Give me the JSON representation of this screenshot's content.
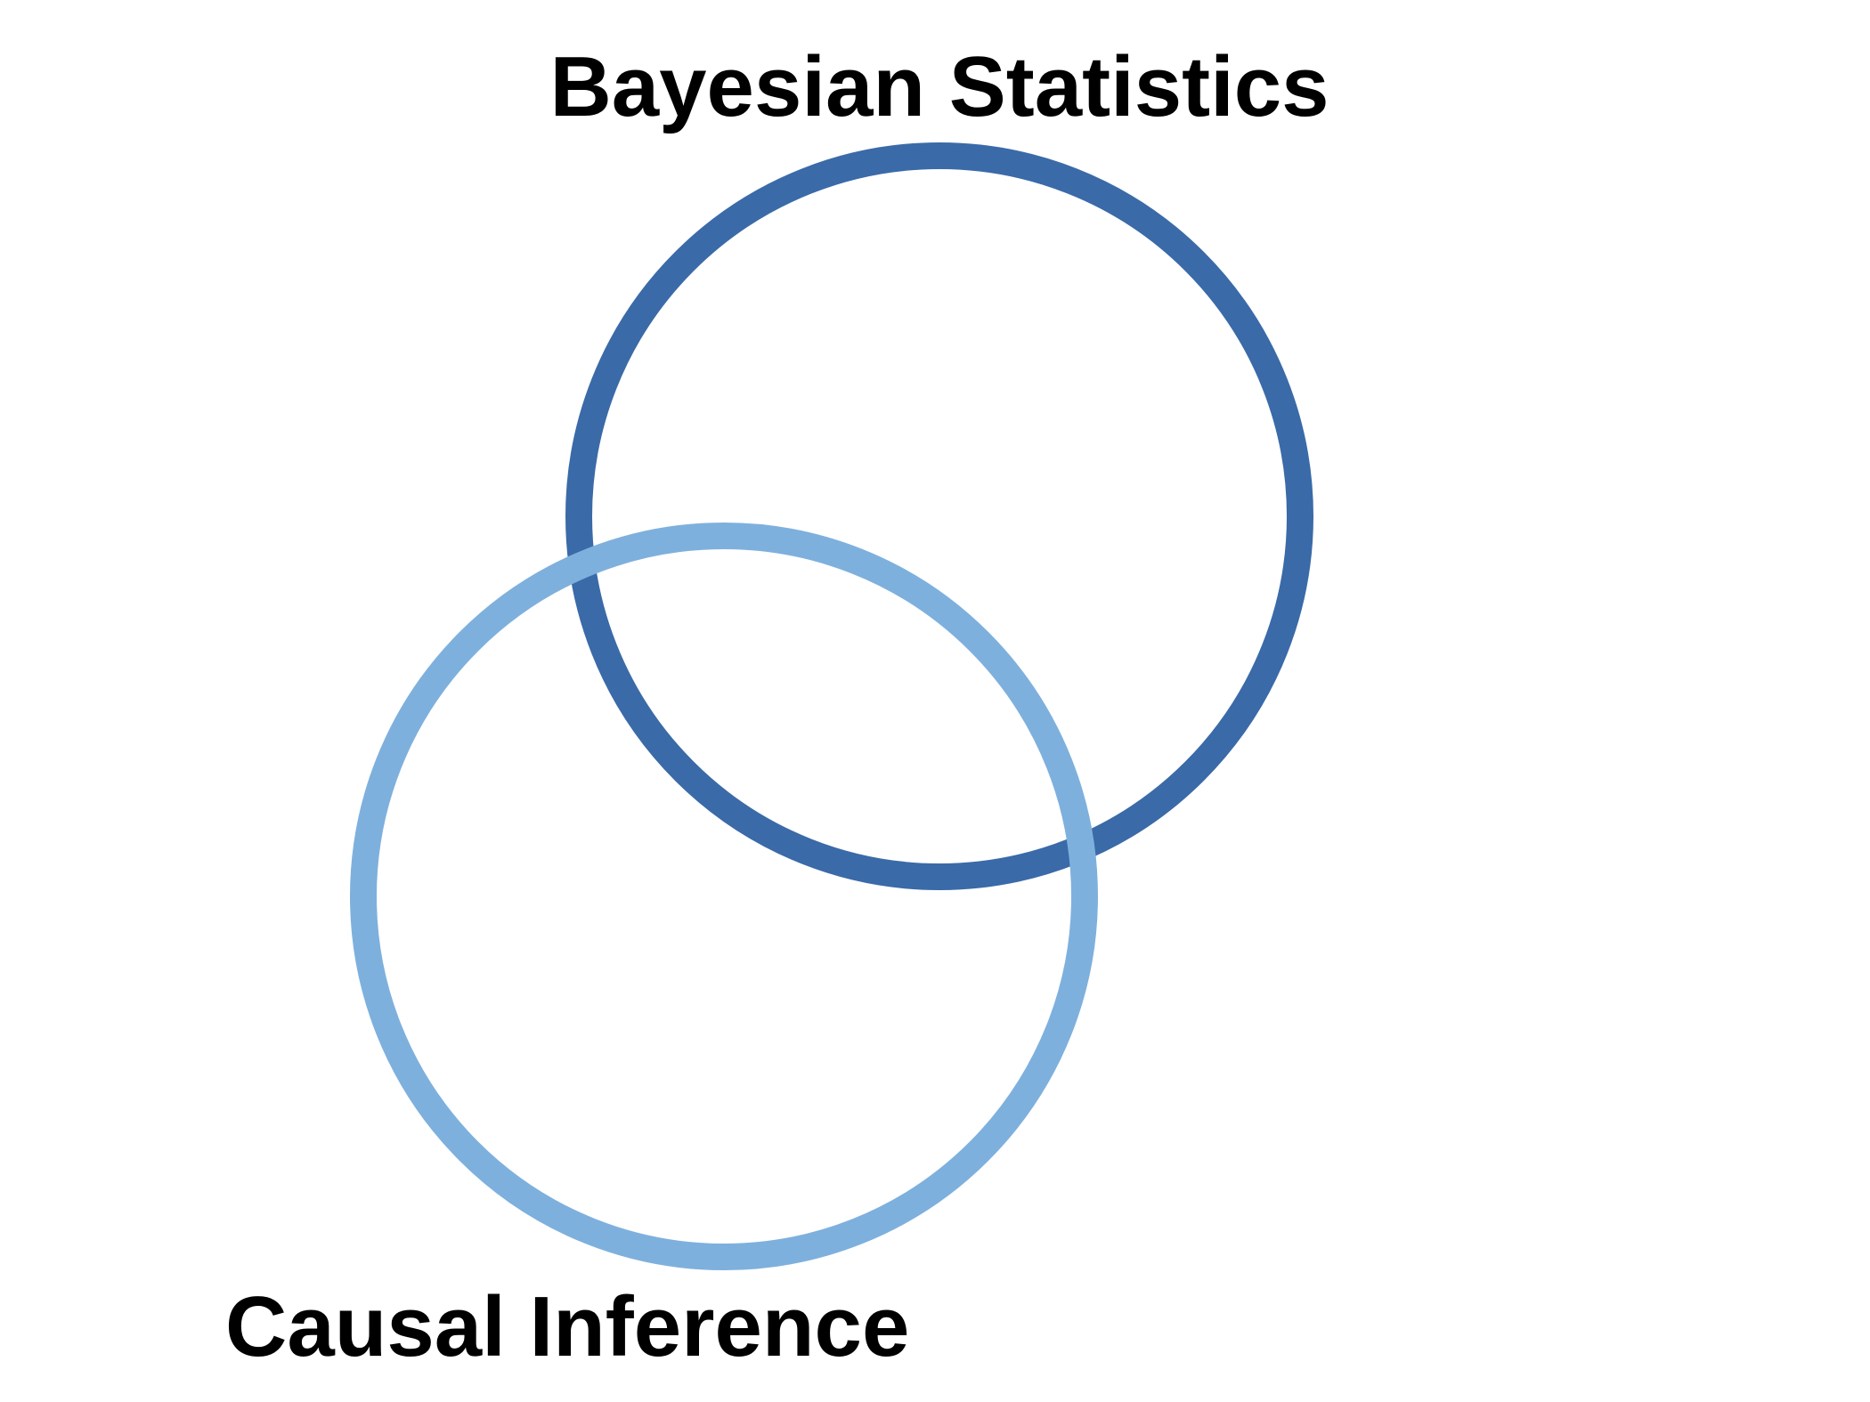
{
  "diagram": {
    "sets": [
      {
        "label": "Bayesian Statistics",
        "color": "#3a6aa8"
      },
      {
        "label": "Causal Inference",
        "color": "#7eb0dd"
      }
    ]
  }
}
